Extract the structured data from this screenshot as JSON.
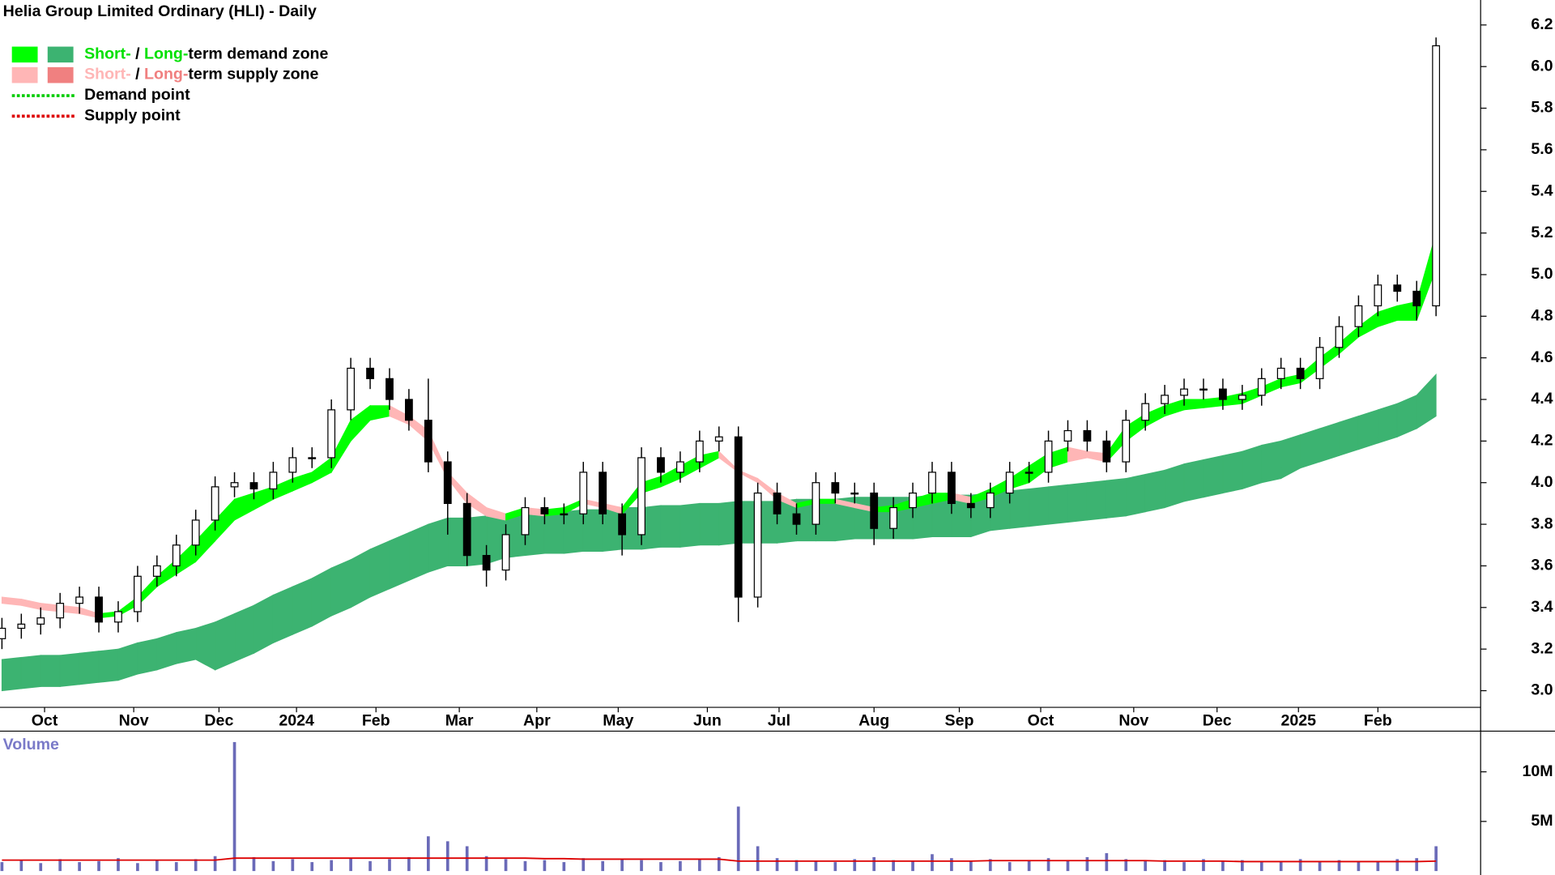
{
  "chart_data": {
    "type": "candlestick",
    "title": "Helia Group Limited Ordinary (HLI) - Daily",
    "legend": [
      {
        "swatches": [
          "#00ff00",
          "#3cb371"
        ],
        "parts": [
          {
            "text": "Short-",
            "color": "#00e000"
          },
          {
            "text": " / ",
            "color": "#000000"
          },
          {
            "text": "Long-",
            "color": "#00e000"
          },
          {
            "text": "term demand zone",
            "color": "#000000"
          }
        ]
      },
      {
        "swatches": [
          "#ffb6b6",
          "#f08080"
        ],
        "parts": [
          {
            "text": "Short-",
            "color": "#ffb6b6"
          },
          {
            "text": " / ",
            "color": "#000000"
          },
          {
            "text": "Long-",
            "color": "#f08080"
          },
          {
            "text": "term supply zone",
            "color": "#000000"
          }
        ]
      },
      {
        "line_color": "#00cc00",
        "parts": [
          {
            "text": "Demand point",
            "color": "#000000"
          }
        ]
      },
      {
        "line_color": "#dd0000",
        "parts": [
          {
            "text": "Supply point",
            "color": "#000000"
          }
        ]
      }
    ],
    "xlim": [
      -0.1,
      76.3
    ],
    "xticks": [
      {
        "value": 2.2,
        "label": "Oct"
      },
      {
        "value": 6.8,
        "label": "Nov"
      },
      {
        "value": 11.2,
        "label": "Dec"
      },
      {
        "value": 15.2,
        "label": "2024"
      },
      {
        "value": 19.3,
        "label": "Feb"
      },
      {
        "value": 23.6,
        "label": "Mar"
      },
      {
        "value": 27.6,
        "label": "Apr"
      },
      {
        "value": 31.8,
        "label": "May"
      },
      {
        "value": 36.4,
        "label": "Jun"
      },
      {
        "value": 40.1,
        "label": "Jul"
      },
      {
        "value": 45,
        "label": "Aug"
      },
      {
        "value": 49.4,
        "label": "Sep"
      },
      {
        "value": 53.6,
        "label": "Oct"
      },
      {
        "value": 58.4,
        "label": "Nov"
      },
      {
        "value": 62.7,
        "label": "Dec"
      },
      {
        "value": 66.9,
        "label": "2025"
      },
      {
        "value": 71,
        "label": "Feb"
      }
    ],
    "ylim": [
      2.92,
      6.32
    ],
    "yticks": [
      {
        "value": 3,
        "label": "3.0"
      },
      3.2,
      3.4,
      3.6,
      3.8,
      {
        "value": 4,
        "label": "4.0"
      },
      4.2,
      4.4,
      4.6,
      4.8,
      {
        "value": 5,
        "label": "5.0"
      },
      5.2,
      5.4,
      5.6,
      5.8,
      {
        "value": 6,
        "label": "6.0"
      },
      6.2
    ],
    "up_color": "#ffffff",
    "down_color": "#000000",
    "open": [
      3.25,
      3.3,
      3.32,
      3.35,
      3.42,
      3.45,
      3.33,
      3.38,
      3.55,
      3.6,
      3.7,
      3.82,
      3.98,
      4.0,
      3.97,
      4.05,
      4.12,
      4.12,
      4.35,
      4.55,
      4.5,
      4.4,
      4.3,
      4.1,
      3.9,
      3.65,
      3.58,
      3.75,
      3.88,
      3.85,
      3.85,
      4.05,
      3.85,
      3.75,
      4.12,
      4.05,
      4.1,
      4.2,
      4.22,
      3.45,
      3.95,
      3.85,
      3.8,
      4.0,
      3.95,
      3.95,
      3.78,
      3.88,
      3.95,
      4.05,
      3.9,
      3.88,
      3.95,
      4.05,
      4.05,
      4.2,
      4.25,
      4.2,
      4.1,
      4.3,
      4.38,
      4.42,
      4.45,
      4.45,
      4.4,
      4.42,
      4.5,
      4.55,
      4.5,
      4.65,
      4.75,
      4.85,
      4.95,
      4.92,
      4.85
    ],
    "high": [
      3.35,
      3.37,
      3.4,
      3.47,
      3.5,
      3.5,
      3.43,
      3.6,
      3.65,
      3.75,
      3.87,
      4.03,
      4.05,
      4.05,
      4.1,
      4.17,
      4.17,
      4.4,
      4.6,
      4.6,
      4.55,
      4.45,
      4.5,
      4.15,
      3.95,
      3.7,
      3.8,
      3.93,
      3.93,
      3.9,
      4.1,
      4.1,
      3.9,
      4.17,
      4.17,
      4.15,
      4.25,
      4.27,
      4.27,
      4.0,
      4.0,
      3.9,
      4.05,
      4.05,
      4.0,
      4.0,
      3.93,
      4.0,
      4.1,
      4.1,
      3.95,
      4.0,
      4.1,
      4.1,
      4.25,
      4.3,
      4.3,
      4.25,
      4.35,
      4.43,
      4.47,
      4.5,
      4.5,
      4.5,
      4.47,
      4.55,
      4.6,
      4.6,
      4.7,
      4.8,
      4.9,
      5.0,
      5.0,
      4.97,
      6.14
    ],
    "low": [
      3.2,
      3.25,
      3.27,
      3.3,
      3.37,
      3.28,
      3.28,
      3.33,
      3.5,
      3.55,
      3.65,
      3.77,
      3.93,
      3.92,
      3.92,
      4.0,
      4.07,
      4.07,
      4.3,
      4.45,
      4.35,
      4.25,
      4.05,
      3.75,
      3.6,
      3.5,
      3.53,
      3.7,
      3.8,
      3.8,
      3.8,
      3.8,
      3.65,
      3.7,
      4.0,
      4.0,
      4.05,
      4.15,
      3.33,
      3.4,
      3.8,
      3.75,
      3.75,
      3.9,
      3.9,
      3.7,
      3.73,
      3.83,
      3.9,
      3.85,
      3.83,
      3.83,
      3.9,
      4.0,
      4.0,
      4.15,
      4.15,
      4.05,
      4.05,
      4.25,
      4.33,
      4.37,
      4.4,
      4.35,
      4.35,
      4.37,
      4.45,
      4.45,
      4.45,
      4.6,
      4.7,
      4.8,
      4.87,
      4.78,
      4.8
    ],
    "close": [
      3.3,
      3.32,
      3.35,
      3.42,
      3.45,
      3.33,
      3.38,
      3.55,
      3.6,
      3.7,
      3.82,
      3.98,
      4.0,
      3.97,
      4.05,
      4.12,
      4.12,
      4.35,
      4.55,
      4.5,
      4.4,
      4.3,
      4.1,
      3.9,
      3.65,
      3.58,
      3.75,
      3.88,
      3.85,
      3.85,
      4.05,
      3.85,
      3.75,
      4.12,
      4.05,
      4.1,
      4.2,
      4.22,
      3.45,
      3.95,
      3.85,
      3.8,
      4.0,
      3.95,
      3.95,
      3.78,
      3.88,
      3.95,
      4.05,
      3.9,
      3.88,
      3.95,
      4.05,
      4.05,
      4.2,
      4.25,
      4.2,
      4.1,
      4.3,
      4.38,
      4.42,
      4.45,
      4.45,
      4.4,
      4.42,
      4.5,
      4.55,
      4.5,
      4.65,
      4.75,
      4.85,
      4.95,
      4.92,
      4.85,
      6.1
    ],
    "short_zone": {
      "demand_color": "#00ff00",
      "supply_color": "#ffb6b6",
      "upper": [
        3.45,
        3.44,
        3.42,
        3.41,
        3.4,
        3.37,
        3.38,
        3.45,
        3.55,
        3.63,
        3.72,
        3.82,
        3.92,
        3.95,
        3.98,
        4.02,
        4.05,
        4.12,
        4.3,
        4.37,
        4.37,
        4.32,
        4.25,
        4.05,
        3.95,
        3.88,
        3.85,
        3.88,
        3.87,
        3.88,
        3.92,
        3.9,
        3.88,
        4.0,
        4.03,
        4.08,
        4.13,
        4.15,
        4.06,
        4.02,
        3.95,
        3.9,
        3.92,
        3.92,
        3.9,
        3.88,
        3.89,
        3.92,
        3.95,
        3.95,
        3.93,
        3.97,
        4.02,
        4.08,
        4.14,
        4.17,
        4.15,
        4.14,
        4.27,
        4.33,
        4.37,
        4.4,
        4.4,
        4.41,
        4.43,
        4.46,
        4.5,
        4.52,
        4.6,
        4.67,
        4.75,
        4.82,
        4.85,
        4.87,
        5.2
      ],
      "lower": [
        3.42,
        3.41,
        3.39,
        3.38,
        3.37,
        3.35,
        3.36,
        3.41,
        3.5,
        3.56,
        3.62,
        3.72,
        3.82,
        3.87,
        3.92,
        3.96,
        4.0,
        4.05,
        4.2,
        4.3,
        4.32,
        4.28,
        4.2,
        4.02,
        3.9,
        3.84,
        3.82,
        3.85,
        3.84,
        3.85,
        3.9,
        3.88,
        3.85,
        3.95,
        3.98,
        4.02,
        4.07,
        4.12,
        4.05,
        4.0,
        3.92,
        3.88,
        3.9,
        3.9,
        3.88,
        3.86,
        3.86,
        3.88,
        3.9,
        3.92,
        3.9,
        3.93,
        3.97,
        4.0,
        4.07,
        4.1,
        4.12,
        4.1,
        4.2,
        4.27,
        4.32,
        4.35,
        4.36,
        4.37,
        4.38,
        4.42,
        4.46,
        4.48,
        4.55,
        4.62,
        4.7,
        4.75,
        4.78,
        4.78,
        5.03
      ]
    },
    "long_zone": {
      "color": "#3cb371",
      "upper": [
        3.15,
        3.16,
        3.17,
        3.17,
        3.18,
        3.19,
        3.2,
        3.23,
        3.25,
        3.28,
        3.3,
        3.33,
        3.37,
        3.41,
        3.46,
        3.5,
        3.54,
        3.59,
        3.63,
        3.68,
        3.72,
        3.76,
        3.8,
        3.83,
        3.83,
        3.84,
        3.84,
        3.85,
        3.86,
        3.86,
        3.87,
        3.87,
        3.88,
        3.88,
        3.89,
        3.89,
        3.9,
        3.9,
        3.91,
        3.91,
        3.91,
        3.92,
        3.92,
        3.92,
        3.93,
        3.93,
        3.93,
        3.93,
        3.94,
        3.94,
        3.94,
        3.95,
        3.96,
        3.97,
        3.98,
        3.99,
        4.0,
        4.01,
        4.02,
        4.04,
        4.06,
        4.09,
        4.11,
        4.13,
        4.15,
        4.18,
        4.2,
        4.23,
        4.26,
        4.29,
        4.32,
        4.35,
        4.38,
        4.42,
        4.52
      ],
      "lower": [
        3.0,
        3.01,
        3.02,
        3.02,
        3.03,
        3.04,
        3.05,
        3.08,
        3.1,
        3.13,
        3.15,
        3.1,
        3.14,
        3.18,
        3.23,
        3.27,
        3.31,
        3.36,
        3.4,
        3.45,
        3.49,
        3.53,
        3.57,
        3.6,
        3.6,
        3.61,
        3.64,
        3.65,
        3.66,
        3.66,
        3.67,
        3.67,
        3.68,
        3.68,
        3.69,
        3.69,
        3.7,
        3.7,
        3.71,
        3.71,
        3.71,
        3.72,
        3.72,
        3.72,
        3.73,
        3.73,
        3.73,
        3.73,
        3.74,
        3.74,
        3.74,
        3.77,
        3.78,
        3.79,
        3.8,
        3.81,
        3.82,
        3.83,
        3.84,
        3.86,
        3.88,
        3.91,
        3.93,
        3.95,
        3.97,
        4.0,
        4.02,
        4.07,
        4.1,
        4.13,
        4.16,
        4.19,
        4.22,
        4.26,
        4.32
      ]
    },
    "volume_label": "Volume",
    "volume_color": "#6a6ab8",
    "volume_avg_color": "#dd0000",
    "y2lim": [
      0,
      13800000
    ],
    "y2ticks": [
      {
        "value": 5000000,
        "label": "5M"
      },
      {
        "value": 10000000,
        "label": "10M"
      }
    ],
    "volume": [
      900000,
      1100000,
      800000,
      1200000,
      900000,
      1000000,
      1300000,
      800000,
      1100000,
      900000,
      1200000,
      1500000,
      13000000,
      1400000,
      1000000,
      1200000,
      900000,
      1100000,
      1300000,
      1000000,
      1200000,
      1400000,
      3500000,
      3000000,
      2500000,
      1500000,
      1200000,
      1000000,
      1100000,
      900000,
      1300000,
      1000000,
      1200000,
      1100000,
      900000,
      1000000,
      1200000,
      1400000,
      6500000,
      2500000,
      1300000,
      1100000,
      1000000,
      900000,
      1200000,
      1400000,
      1100000,
      1000000,
      1700000,
      1300000,
      1000000,
      1200000,
      900000,
      1100000,
      1300000,
      1000000,
      1400000,
      1800000,
      1200000,
      1000000,
      1100000,
      900000,
      1200000,
      1000000,
      1100000,
      900000,
      1000000,
      1200000,
      900000,
      1100000,
      1000000,
      900000,
      1200000,
      1300000,
      2500000
    ],
    "volume_avg": [
      1100000,
      1100000,
      1100000,
      1100000,
      1100000,
      1100000,
      1100000,
      1100000,
      1100000,
      1100000,
      1100000,
      1100000,
      1300000,
      1300000,
      1300000,
      1300000,
      1300000,
      1300000,
      1300000,
      1300000,
      1300000,
      1300000,
      1300000,
      1300000,
      1300000,
      1300000,
      1300000,
      1300000,
      1250000,
      1250000,
      1200000,
      1200000,
      1200000,
      1200000,
      1200000,
      1200000,
      1200000,
      1200000,
      1000000,
      1000000,
      1000000,
      1000000,
      1000000,
      1000000,
      1000000,
      1000000,
      1000000,
      1000000,
      1000000,
      1000000,
      1000000,
      1050000,
      1050000,
      1050000,
      1050000,
      1050000,
      1050000,
      1050000,
      1050000,
      1050000,
      1000000,
      1000000,
      1000000,
      1000000,
      950000,
      950000,
      950000,
      950000,
      950000,
      950000,
      950000,
      950000,
      950000,
      950000,
      1000000
    ]
  }
}
